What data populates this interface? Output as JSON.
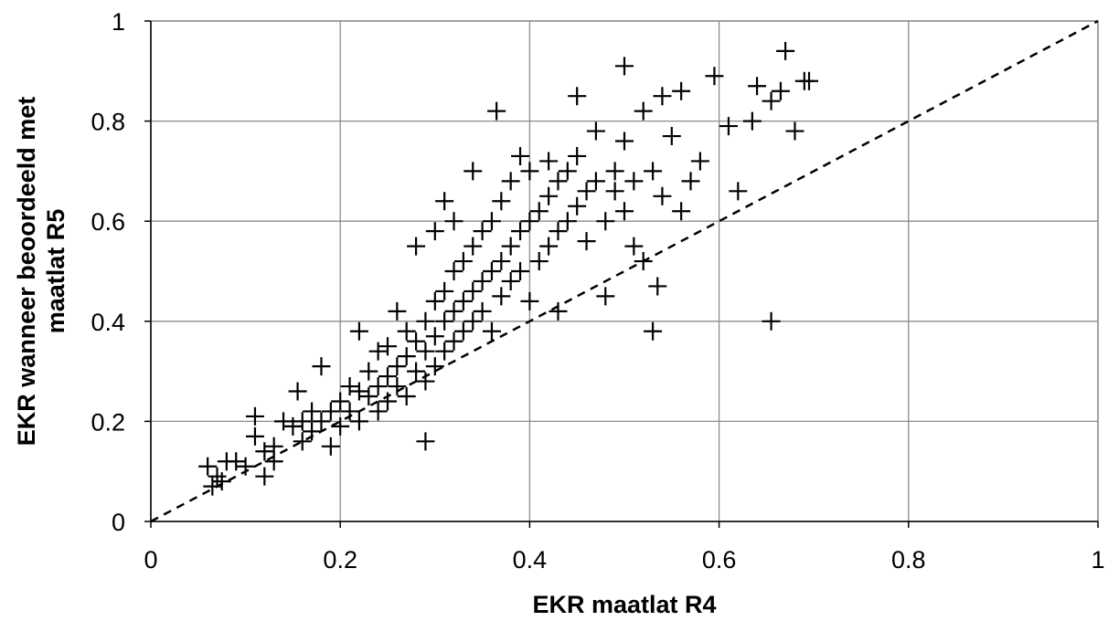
{
  "chart_data": {
    "type": "scatter",
    "title": "",
    "xlabel": "EKR maatlat R4",
    "ylabel_lines": [
      "EKR wanneer beoordeeld met",
      "maatlat R5"
    ],
    "xlim": [
      0,
      1
    ],
    "ylim": [
      0,
      1
    ],
    "x_ticks": [
      0,
      0.2,
      0.4,
      0.6,
      0.8,
      1
    ],
    "x_tick_labels": [
      "0",
      "0.2",
      "0.4",
      "0.6",
      "0.8",
      "1"
    ],
    "y_ticks": [
      0,
      0.2,
      0.4,
      0.6,
      0.8,
      1
    ],
    "y_tick_labels": [
      "0",
      "0.2",
      "0.4",
      "0.6",
      "0.8",
      "1"
    ],
    "grid": true,
    "marker": "plus",
    "reference_line": {
      "style": "dashed",
      "from": [
        0,
        0
      ],
      "to": [
        1,
        1
      ]
    },
    "points": [
      [
        0.06,
        0.11
      ],
      [
        0.065,
        0.07
      ],
      [
        0.07,
        0.09
      ],
      [
        0.075,
        0.08
      ],
      [
        0.08,
        0.12
      ],
      [
        0.09,
        0.12
      ],
      [
        0.1,
        0.11
      ],
      [
        0.11,
        0.21
      ],
      [
        0.11,
        0.17
      ],
      [
        0.12,
        0.14
      ],
      [
        0.12,
        0.09
      ],
      [
        0.13,
        0.15
      ],
      [
        0.13,
        0.12
      ],
      [
        0.14,
        0.2
      ],
      [
        0.15,
        0.19
      ],
      [
        0.155,
        0.26
      ],
      [
        0.16,
        0.2
      ],
      [
        0.16,
        0.16
      ],
      [
        0.17,
        0.18
      ],
      [
        0.17,
        0.22
      ],
      [
        0.18,
        0.31
      ],
      [
        0.18,
        0.2
      ],
      [
        0.19,
        0.22
      ],
      [
        0.19,
        0.15
      ],
      [
        0.2,
        0.24
      ],
      [
        0.2,
        0.19
      ],
      [
        0.21,
        0.27
      ],
      [
        0.21,
        0.22
      ],
      [
        0.22,
        0.38
      ],
      [
        0.22,
        0.26
      ],
      [
        0.22,
        0.2
      ],
      [
        0.23,
        0.25
      ],
      [
        0.23,
        0.3
      ],
      [
        0.24,
        0.34
      ],
      [
        0.24,
        0.27
      ],
      [
        0.24,
        0.22
      ],
      [
        0.25,
        0.29
      ],
      [
        0.25,
        0.35
      ],
      [
        0.25,
        0.24
      ],
      [
        0.26,
        0.31
      ],
      [
        0.26,
        0.42
      ],
      [
        0.26,
        0.27
      ],
      [
        0.27,
        0.33
      ],
      [
        0.27,
        0.38
      ],
      [
        0.27,
        0.25
      ],
      [
        0.28,
        0.3
      ],
      [
        0.28,
        0.36
      ],
      [
        0.28,
        0.55
      ],
      [
        0.29,
        0.34
      ],
      [
        0.29,
        0.4
      ],
      [
        0.29,
        0.16
      ],
      [
        0.29,
        0.28
      ],
      [
        0.3,
        0.37
      ],
      [
        0.3,
        0.44
      ],
      [
        0.3,
        0.58
      ],
      [
        0.3,
        0.31
      ],
      [
        0.31,
        0.4
      ],
      [
        0.31,
        0.46
      ],
      [
        0.31,
        0.64
      ],
      [
        0.31,
        0.34
      ],
      [
        0.32,
        0.42
      ],
      [
        0.32,
        0.5
      ],
      [
        0.32,
        0.6
      ],
      [
        0.32,
        0.36
      ],
      [
        0.33,
        0.44
      ],
      [
        0.33,
        0.52
      ],
      [
        0.33,
        0.38
      ],
      [
        0.34,
        0.46
      ],
      [
        0.34,
        0.55
      ],
      [
        0.34,
        0.7
      ],
      [
        0.34,
        0.4
      ],
      [
        0.35,
        0.48
      ],
      [
        0.35,
        0.58
      ],
      [
        0.35,
        0.42
      ],
      [
        0.36,
        0.5
      ],
      [
        0.36,
        0.6
      ],
      [
        0.365,
        0.82
      ],
      [
        0.36,
        0.38
      ],
      [
        0.37,
        0.52
      ],
      [
        0.37,
        0.64
      ],
      [
        0.37,
        0.45
      ],
      [
        0.38,
        0.55
      ],
      [
        0.38,
        0.68
      ],
      [
        0.38,
        0.48
      ],
      [
        0.39,
        0.58
      ],
      [
        0.39,
        0.73
      ],
      [
        0.39,
        0.5
      ],
      [
        0.4,
        0.6
      ],
      [
        0.4,
        0.7
      ],
      [
        0.4,
        0.44
      ],
      [
        0.41,
        0.62
      ],
      [
        0.41,
        0.52
      ],
      [
        0.42,
        0.65
      ],
      [
        0.42,
        0.72
      ],
      [
        0.42,
        0.55
      ],
      [
        0.43,
        0.68
      ],
      [
        0.43,
        0.58
      ],
      [
        0.43,
        0.42
      ],
      [
        0.44,
        0.7
      ],
      [
        0.44,
        0.6
      ],
      [
        0.45,
        0.63
      ],
      [
        0.45,
        0.85
      ],
      [
        0.45,
        0.73
      ],
      [
        0.46,
        0.66
      ],
      [
        0.46,
        0.56
      ],
      [
        0.47,
        0.68
      ],
      [
        0.47,
        0.78
      ],
      [
        0.48,
        0.6
      ],
      [
        0.48,
        0.45
      ],
      [
        0.49,
        0.7
      ],
      [
        0.49,
        0.66
      ],
      [
        0.5,
        0.91
      ],
      [
        0.5,
        0.76
      ],
      [
        0.5,
        0.62
      ],
      [
        0.51,
        0.68
      ],
      [
        0.51,
        0.55
      ],
      [
        0.52,
        0.82
      ],
      [
        0.52,
        0.52
      ],
      [
        0.53,
        0.7
      ],
      [
        0.53,
        0.38
      ],
      [
        0.535,
        0.47
      ],
      [
        0.54,
        0.85
      ],
      [
        0.54,
        0.65
      ],
      [
        0.55,
        0.77
      ],
      [
        0.56,
        0.86
      ],
      [
        0.56,
        0.62
      ],
      [
        0.57,
        0.68
      ],
      [
        0.58,
        0.72
      ],
      [
        0.595,
        0.89
      ],
      [
        0.61,
        0.79
      ],
      [
        0.62,
        0.66
      ],
      [
        0.635,
        0.8
      ],
      [
        0.64,
        0.87
      ],
      [
        0.655,
        0.84
      ],
      [
        0.655,
        0.4
      ],
      [
        0.665,
        0.86
      ],
      [
        0.67,
        0.94
      ],
      [
        0.68,
        0.78
      ],
      [
        0.69,
        0.88
      ],
      [
        0.695,
        0.88
      ]
    ]
  }
}
